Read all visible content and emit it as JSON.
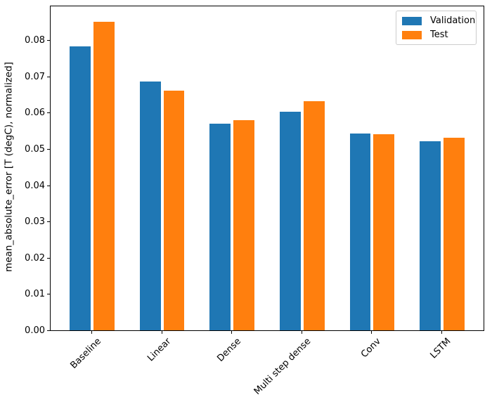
{
  "chart_data": {
    "type": "bar",
    "title": "",
    "categories": [
      "Baseline",
      "Linear",
      "Dense",
      "Multi step dense",
      "Conv",
      "LSTM"
    ],
    "series": [
      {
        "name": "Validation",
        "color": "#1f77b4",
        "values": [
          0.0785,
          0.0687,
          0.0572,
          0.0605,
          0.0545,
          0.0524
        ]
      },
      {
        "name": "Test",
        "color": "#ff7f0e",
        "values": [
          0.0852,
          0.0662,
          0.0582,
          0.0633,
          0.0542,
          0.0533
        ]
      }
    ],
    "xlabel": "",
    "ylabel": "mean_absolute_error [T (degC), normalized]",
    "ylim": [
      0,
      0.0897
    ],
    "xlim": [
      -0.602,
      5.602
    ],
    "yticks": [
      0,
      0.01,
      0.02,
      0.03,
      0.04,
      0.05,
      0.06,
      0.07,
      0.08
    ],
    "ytick_labels": [
      "0.00",
      "0.01",
      "0.02",
      "0.03",
      "0.04",
      "0.05",
      "0.06",
      "0.07",
      "0.08"
    ],
    "x_tick_rotation_deg": 45,
    "bar_width_units": 0.3,
    "bar_offset_units": 0.17,
    "grid": false,
    "legend_position": "upper right"
  },
  "figure": {
    "background": "#ffffff",
    "spine_color": "#000000",
    "legend_border_color": "#cccccc"
  }
}
